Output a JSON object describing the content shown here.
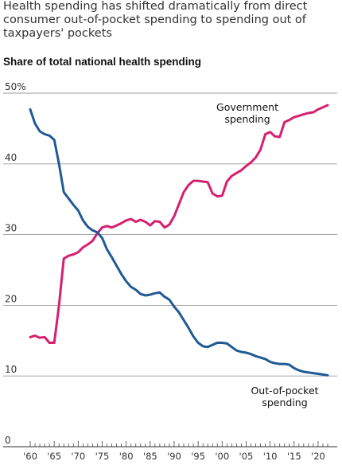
{
  "title": "Health spending has shifted dramatically from direct consumer out-of-pocket spending to spending out of taxpayers' pockets",
  "chart_data": {
    "type": "line",
    "subtitle": "Share of total national health spending",
    "ylim": [
      0,
      50
    ],
    "yticks": [
      {
        "value": 0,
        "label": "0"
      },
      {
        "value": 10,
        "label": "10"
      },
      {
        "value": 20,
        "label": "20"
      },
      {
        "value": 30,
        "label": "30"
      },
      {
        "value": 40,
        "label": "40"
      },
      {
        "value": 50,
        "label": "50%"
      }
    ],
    "xlim": [
      1960,
      2023
    ],
    "xticks": [
      {
        "value": 1960,
        "label": "'60"
      },
      {
        "value": 1965,
        "label": "'65"
      },
      {
        "value": 1970,
        "label": "'70"
      },
      {
        "value": 1975,
        "label": "'75"
      },
      {
        "value": 1980,
        "label": "'80"
      },
      {
        "value": 1985,
        "label": "'85"
      },
      {
        "value": 1990,
        "label": "'90"
      },
      {
        "value": 1995,
        "label": "'95"
      },
      {
        "value": 2000,
        "label": "'00"
      },
      {
        "value": 2005,
        "label": "'05"
      },
      {
        "value": 2010,
        "label": "'10"
      },
      {
        "value": 2015,
        "label": "'15"
      },
      {
        "value": 2020,
        "label": "'20"
      }
    ],
    "grid": true,
    "series": [
      {
        "name": "Government spending",
        "label_lines": [
          "Government",
          "spending"
        ],
        "color": "#d6206f",
        "x": [
          1960,
          1961,
          1962,
          1963,
          1964,
          1965,
          1966,
          1967,
          1968,
          1969,
          1970,
          1971,
          1972,
          1973,
          1974,
          1975,
          1976,
          1977,
          1978,
          1979,
          1980,
          1981,
          1982,
          1983,
          1984,
          1985,
          1986,
          1987,
          1988,
          1989,
          1990,
          1991,
          1992,
          1993,
          1994,
          1995,
          1996,
          1997,
          1998,
          1999,
          2000,
          2001,
          2002,
          2003,
          2004,
          2005,
          2006,
          2007,
          2008,
          2009,
          2010,
          2011,
          2012,
          2013,
          2014,
          2015,
          2016,
          2017,
          2018,
          2019,
          2020,
          2021,
          2022
        ],
        "values": [
          15.5,
          15.7,
          15.4,
          15.5,
          14.7,
          14.7,
          20.0,
          26.6,
          27.0,
          27.2,
          27.5,
          28.2,
          28.6,
          29.1,
          30.2,
          31.0,
          31.2,
          31.0,
          31.3,
          31.6,
          32.0,
          32.2,
          31.8,
          32.1,
          31.8,
          31.3,
          31.9,
          31.8,
          31.0,
          31.4,
          32.6,
          34.3,
          36.0,
          37.0,
          37.6,
          37.6,
          37.5,
          37.4,
          35.8,
          35.4,
          35.5,
          37.5,
          38.3,
          38.7,
          39.1,
          39.7,
          40.2,
          40.9,
          42.0,
          44.2,
          44.5,
          43.9,
          43.8,
          45.9,
          46.2,
          46.6,
          46.8,
          47.0,
          47.2,
          47.3,
          47.7,
          48.0,
          48.3
        ]
      },
      {
        "name": "Out-of-pocket spending",
        "label_lines": [
          "Out-of-pocket",
          "spending"
        ],
        "color": "#1f5a96",
        "x": [
          1960,
          1961,
          1962,
          1963,
          1964,
          1965,
          1966,
          1967,
          1968,
          1969,
          1970,
          1971,
          1972,
          1973,
          1974,
          1975,
          1976,
          1977,
          1978,
          1979,
          1980,
          1981,
          1982,
          1983,
          1984,
          1985,
          1986,
          1987,
          1988,
          1989,
          1990,
          1991,
          1992,
          1993,
          1994,
          1995,
          1996,
          1997,
          1998,
          1999,
          2000,
          2001,
          2002,
          2003,
          2004,
          2005,
          2006,
          2007,
          2008,
          2009,
          2010,
          2011,
          2012,
          2013,
          2014,
          2015,
          2016,
          2017,
          2018,
          2019,
          2020,
          2021,
          2022
        ],
        "values": [
          47.7,
          45.7,
          44.6,
          44.2,
          44.0,
          43.4,
          40.0,
          36.0,
          35.1,
          34.2,
          33.4,
          32.0,
          31.1,
          30.6,
          30.3,
          29.5,
          27.9,
          26.8,
          25.6,
          24.4,
          23.4,
          22.6,
          22.2,
          21.6,
          21.4,
          21.5,
          21.7,
          21.8,
          21.2,
          20.8,
          19.8,
          19.0,
          17.9,
          16.8,
          15.6,
          14.7,
          14.2,
          14.1,
          14.4,
          14.7,
          14.7,
          14.6,
          14.1,
          13.6,
          13.4,
          13.3,
          13.1,
          12.8,
          12.6,
          12.4,
          12.0,
          11.8,
          11.7,
          11.7,
          11.6,
          11.1,
          10.8,
          10.6,
          10.5,
          10.4,
          10.3,
          10.2,
          10.1
        ]
      }
    ]
  }
}
